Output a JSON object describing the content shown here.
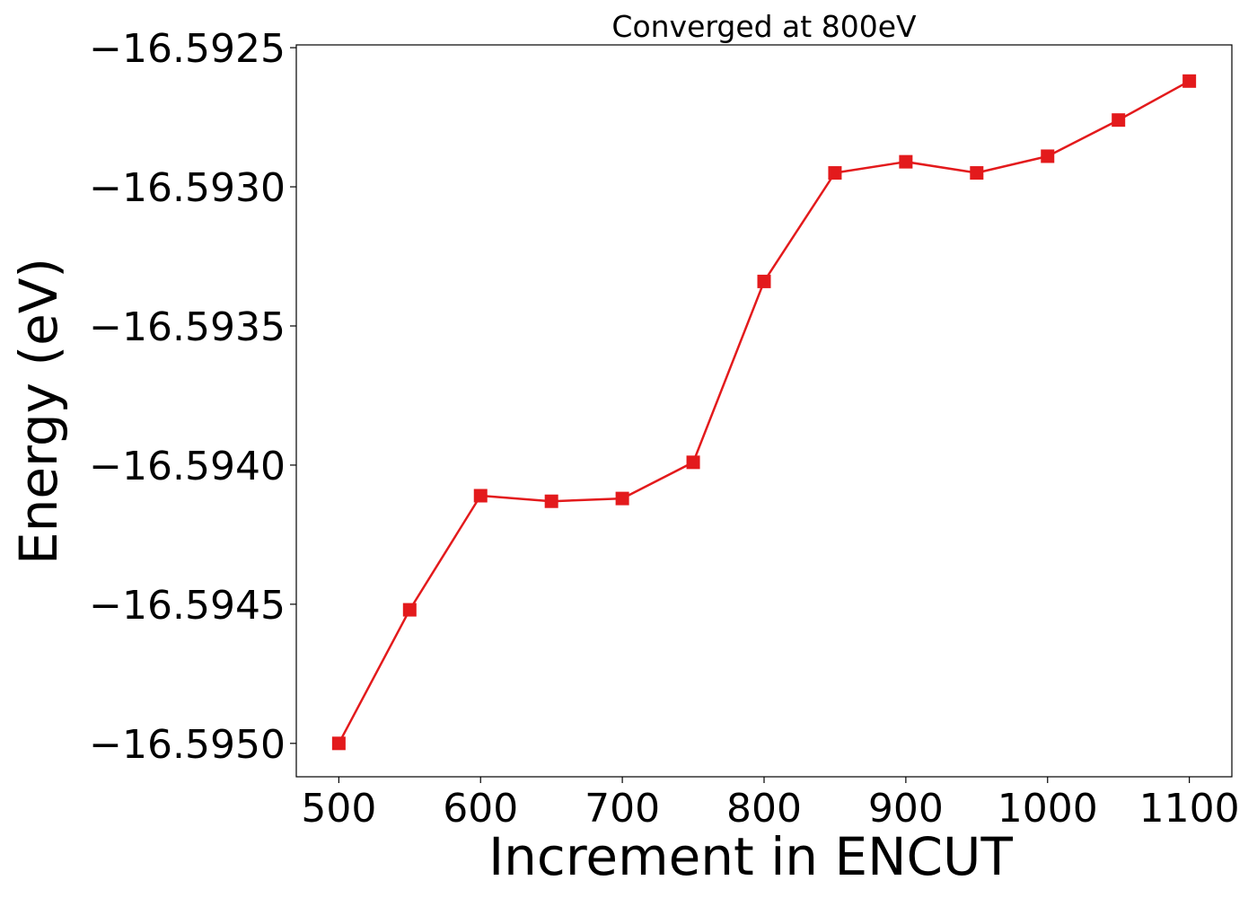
{
  "chart_data": {
    "type": "line",
    "title": "Converged at 800eV",
    "xlabel": "Increment in ENCUT",
    "ylabel": "Energy (eV)",
    "x": [
      500,
      550,
      600,
      650,
      700,
      750,
      800,
      850,
      900,
      950,
      1000,
      1050,
      1100
    ],
    "series": [
      {
        "name": "",
        "values": [
          -16.595,
          -16.59452,
          -16.59411,
          -16.59413,
          -16.59412,
          -16.59399,
          -16.59334,
          -16.59295,
          -16.59291,
          -16.59295,
          -16.59289,
          -16.59276,
          -16.59262
        ],
        "color": "#e31a1c",
        "marker": "square"
      }
    ],
    "xlim": [
      470,
      1130
    ],
    "ylim": [
      -16.59512,
      -16.59249
    ],
    "xticks": [
      500,
      600,
      700,
      800,
      900,
      1000,
      1100
    ],
    "xtick_labels": [
      "500",
      "600",
      "700",
      "800",
      "900",
      "1000",
      "1100"
    ],
    "yticks": [
      -16.5925,
      -16.593,
      -16.5935,
      -16.594,
      -16.5945,
      -16.595
    ],
    "ytick_labels": [
      "−16.5925",
      "−16.5930",
      "−16.5935",
      "−16.5940",
      "−16.5945",
      "−16.5950"
    ],
    "grid": false,
    "legend": false
  }
}
